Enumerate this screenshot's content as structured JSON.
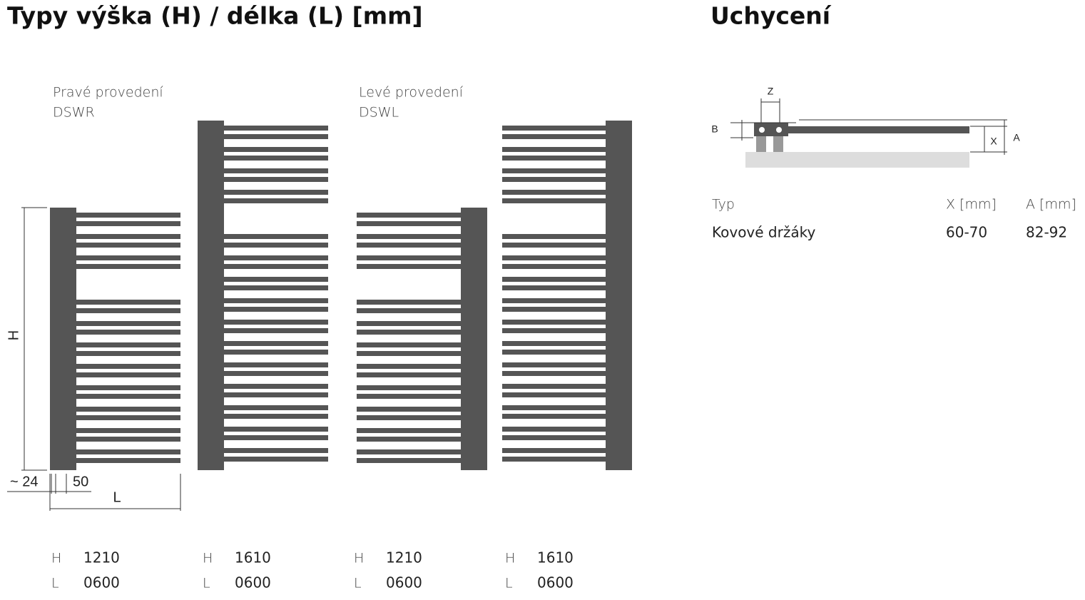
{
  "left": {
    "title": "Typy výška (H) / délka (L) [mm]",
    "variants": [
      {
        "label": "Pravé provedení",
        "code": "DSWR"
      },
      {
        "label": "Levé provedení",
        "code": "DSWL"
      }
    ],
    "dimensions": {
      "height": "H",
      "offset": "~ 24",
      "step": "50",
      "length": "L"
    },
    "models": [
      {
        "h_label": "H",
        "h": "1210",
        "l_label": "L",
        "l": "0600"
      },
      {
        "h_label": "H",
        "h": "1610",
        "l_label": "L",
        "l": "0600"
      },
      {
        "h_label": "H",
        "h": "1210",
        "l_label": "L",
        "l": "0600"
      },
      {
        "h_label": "H",
        "h": "1610",
        "l_label": "L",
        "l": "0600"
      }
    ]
  },
  "right": {
    "title": "Uchycení",
    "diagram": {
      "z": "Z",
      "b": "B",
      "x": "X",
      "a": "A"
    },
    "table": {
      "header": [
        "Typ",
        "X [mm]",
        "A [mm]"
      ],
      "rows": [
        [
          "Kovové držáky",
          "60-70",
          "82-92"
        ]
      ]
    }
  }
}
